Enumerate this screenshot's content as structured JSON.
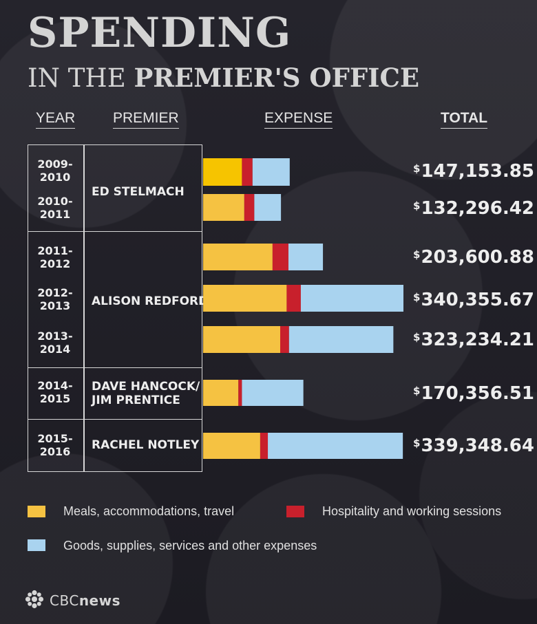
{
  "title": {
    "main": "SPENDING",
    "sub_light": "IN THE",
    "sub_bold": "PREMIER'S OFFICE"
  },
  "columns": {
    "year": "YEAR",
    "premier": "PREMIER",
    "expense": "EXPENSE",
    "total": "TOTAL"
  },
  "premiers": [
    {
      "name": "ED STELMACH"
    },
    {
      "name": "ALISON REDFORD"
    },
    {
      "name": "DAVE HANCOCK/\nJIM PRENTICE"
    },
    {
      "name": "RACHEL NOTLEY"
    }
  ],
  "rows": [
    {
      "year_line1": "2009-",
      "year_line2": "2010",
      "total_symbol": "$",
      "total": "147,153.85"
    },
    {
      "year_line1": "2010-",
      "year_line2": "2011",
      "total_symbol": "$",
      "total": "132,296.42"
    },
    {
      "year_line1": "2011-",
      "year_line2": "2012",
      "total_symbol": "$",
      "total": "203,600.88"
    },
    {
      "year_line1": "2012-",
      "year_line2": "2013",
      "total_symbol": "$",
      "total": "340,355.67"
    },
    {
      "year_line1": "2013-",
      "year_line2": "2014",
      "total_symbol": "$",
      "total": "323,234.21"
    },
    {
      "year_line1": "2014-",
      "year_line2": "2015",
      "total_symbol": "$",
      "total": "170,356.51"
    },
    {
      "year_line1": "2015-",
      "year_line2": "2016",
      "total_symbol": "$",
      "total": "339,348.64"
    }
  ],
  "legend": {
    "meals": "Meals, accommodations, travel",
    "hospitality": "Hospitality and working sessions",
    "goods": "Goods, supplies, services and other expenses"
  },
  "logo": {
    "prefix": "CBC",
    "suffix": "news",
    "icon": "cbc-gem-icon"
  },
  "colors": {
    "meals": "#f5c242",
    "meals_first": "#f6c400",
    "hospitality": "#c8202c",
    "goods": "#a9d3ef"
  },
  "chart_data": {
    "type": "bar",
    "stacked": true,
    "orientation": "horizontal",
    "title": "SPENDING IN THE PREMIER'S OFFICE",
    "categories": [
      "2009-2010",
      "2010-2011",
      "2011-2012",
      "2012-2013",
      "2013-2014",
      "2014-2015",
      "2015-2016"
    ],
    "series": [
      {
        "name": "Meals, accommodations, travel",
        "values": [
          66000,
          70000,
          118000,
          142000,
          131000,
          60000,
          97000
        ]
      },
      {
        "name": "Hospitality and working sessions",
        "values": [
          18000,
          17000,
          27000,
          24000,
          15000,
          6000,
          13000
        ]
      },
      {
        "name": "Goods, supplies, services and other expenses",
        "values": [
          63153.85,
          45296.42,
          58600.88,
          174355.67,
          177234.21,
          104356.51,
          229348.64
        ]
      }
    ],
    "totals": [
      147153.85,
      132296.42,
      203600.88,
      340355.67,
      323234.21,
      170356.51,
      339348.64
    ],
    "xlim": [
      0,
      340355.67
    ]
  }
}
